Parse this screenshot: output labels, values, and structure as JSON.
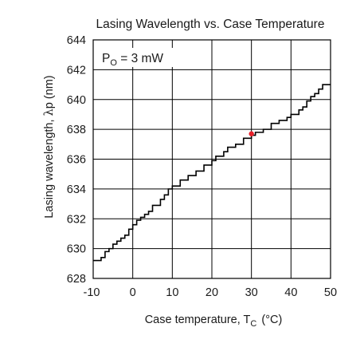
{
  "chart_data": {
    "type": "line",
    "title": "Lasing Wavelength vs. Case Temperature",
    "xlabel_main": "Case temperature,  T",
    "xlabel_sub": "C",
    "xlabel_unit": "(°C)",
    "ylabel_main": "Lasing wavelength, ",
    "ylabel_symbol": "λ",
    "ylabel_rest": "p (nm)",
    "annotation_main": "P",
    "annotation_sub": "O",
    "annotation_rest": " = 3 mW",
    "xlim": [
      -10,
      50
    ],
    "ylim": [
      628,
      644
    ],
    "x_ticks": [
      -10,
      0,
      10,
      20,
      30,
      40,
      50
    ],
    "x_tick_labels": [
      "-10",
      "0",
      "10",
      "20",
      "30",
      "40",
      "50"
    ],
    "y_ticks": [
      628,
      630,
      632,
      634,
      636,
      638,
      640,
      642,
      644
    ],
    "y_tick_labels": [
      "628",
      "630",
      "632",
      "634",
      "636",
      "638",
      "640",
      "642",
      "644"
    ],
    "grid": true,
    "series": [
      {
        "style": "step",
        "color": "#000000",
        "x": [
          -10,
          -8,
          -7,
          -6,
          -5,
          -4,
          -3,
          -2,
          -1,
          0,
          1,
          2,
          3,
          4,
          5,
          7,
          8,
          9,
          10,
          12,
          14,
          16,
          18,
          20,
          21,
          23,
          24,
          26,
          28,
          30,
          31,
          33,
          35,
          37,
          39,
          40,
          42,
          43,
          44,
          45,
          46,
          47,
          48,
          50
        ],
        "y": [
          629.2,
          629.4,
          629.8,
          630.0,
          630.3,
          630.5,
          630.7,
          630.9,
          631.3,
          631.6,
          631.9,
          632.1,
          632.3,
          632.5,
          632.9,
          633.3,
          633.6,
          634.0,
          634.2,
          634.6,
          634.9,
          635.2,
          635.6,
          635.9,
          636.2,
          636.5,
          636.8,
          637.0,
          637.4,
          637.6,
          637.8,
          638.0,
          638.4,
          638.6,
          638.8,
          639.0,
          639.3,
          639.5,
          639.9,
          640.2,
          640.4,
          640.7,
          641.0,
          641.0
        ]
      }
    ],
    "highlight_point": {
      "x": 30,
      "y": 637.7,
      "color": "#e8202a"
    }
  }
}
